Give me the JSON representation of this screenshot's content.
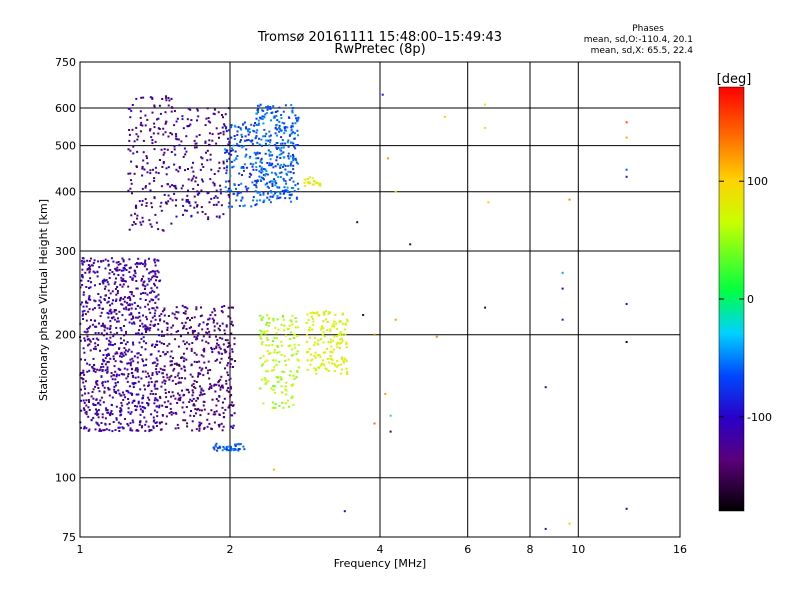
{
  "chart_data": {
    "type": "scatter",
    "title": "Tromsø 20161111 15:48:00–15:49:43",
    "subtitle": "RwPretec (8p)",
    "xlabel": "Frequency [MHz]",
    "ylabel": "Stationary phase Virtual Height [km]",
    "xscale": "log2",
    "yscale": "log",
    "xlim": [
      1,
      16
    ],
    "ylim": [
      75,
      750
    ],
    "xticks": [
      "1",
      "2",
      "4",
      "6",
      "8",
      "10",
      "16"
    ],
    "yticks": [
      "75",
      "100",
      "200",
      "300",
      "400",
      "500",
      "600",
      "750"
    ],
    "grid": true,
    "phase_stats": {
      "title": "Phases",
      "line_o": "mean, sd,O:-110.4, 20.1",
      "line_x": "mean, sd,X:  65.5, 22.4"
    },
    "colorbar": {
      "label": "[deg]",
      "range": [
        -180,
        180
      ],
      "ticks": [
        "100",
        "0",
        "-100"
      ],
      "tick_values": [
        100,
        0,
        -100
      ]
    },
    "clusters": [
      {
        "x": [
          1.0,
          1.45
        ],
        "y": [
          125,
          290
        ],
        "phase": [
          -140,
          -95
        ],
        "n": 900
      },
      {
        "x": [
          1.45,
          2.05
        ],
        "y": [
          125,
          230
        ],
        "phase": [
          -150,
          -110
        ],
        "n": 450
      },
      {
        "x": [
          1.25,
          1.55
        ],
        "y": [
          330,
          640
        ],
        "phase": [
          -150,
          -100
        ],
        "n": 180
      },
      {
        "x": [
          1.55,
          2.0
        ],
        "y": [
          350,
          600
        ],
        "phase": [
          -150,
          -90
        ],
        "n": 190
      },
      {
        "x": [
          1.95,
          2.3
        ],
        "y": [
          370,
          560
        ],
        "phase": [
          -90,
          -40
        ],
        "n": 140
      },
      {
        "x": [
          2.25,
          2.75
        ],
        "y": [
          380,
          610
        ],
        "phase": [
          -80,
          -40
        ],
        "n": 320
      },
      {
        "x": [
          2.3,
          2.75
        ],
        "y": [
          140,
          220
        ],
        "phase": [
          40,
          80
        ],
        "n": 160
      },
      {
        "x": [
          2.85,
          3.45
        ],
        "y": [
          165,
          225
        ],
        "phase": [
          60,
          90
        ],
        "n": 160
      },
      {
        "x": [
          2.8,
          3.05
        ],
        "y": [
          410,
          430
        ],
        "phase": [
          70,
          90
        ],
        "n": 20
      },
      {
        "x": [
          1.85,
          2.15
        ],
        "y": [
          114,
          118
        ],
        "phase": [
          -85,
          -40
        ],
        "n": 45
      }
    ],
    "sparse_points": [
      {
        "x": 4.05,
        "y": 640,
        "phase": -90
      },
      {
        "x": 4.15,
        "y": 470,
        "phase": 120
      },
      {
        "x": 4.3,
        "y": 400,
        "phase": 60
      },
      {
        "x": 5.4,
        "y": 575,
        "phase": 100
      },
      {
        "x": 6.5,
        "y": 610,
        "phase": 80
      },
      {
        "x": 6.5,
        "y": 545,
        "phase": 60
      },
      {
        "x": 6.6,
        "y": 380,
        "phase": 100
      },
      {
        "x": 6.5,
        "y": 228,
        "phase": -150
      },
      {
        "x": 9.6,
        "y": 385,
        "phase": 130
      },
      {
        "x": 9.3,
        "y": 270,
        "phase": -40
      },
      {
        "x": 9.3,
        "y": 250,
        "phase": -100
      },
      {
        "x": 9.3,
        "y": 215,
        "phase": -90
      },
      {
        "x": 8.6,
        "y": 155,
        "phase": -110
      },
      {
        "x": 8.6,
        "y": 78,
        "phase": -90
      },
      {
        "x": 9.6,
        "y": 80,
        "phase": 100
      },
      {
        "x": 12.5,
        "y": 560,
        "phase": 150
      },
      {
        "x": 12.5,
        "y": 520,
        "phase": 120
      },
      {
        "x": 12.5,
        "y": 445,
        "phase": -60
      },
      {
        "x": 12.5,
        "y": 430,
        "phase": -90
      },
      {
        "x": 12.5,
        "y": 232,
        "phase": -90
      },
      {
        "x": 12.5,
        "y": 193,
        "phase": -170
      },
      {
        "x": 12.5,
        "y": 86,
        "phase": -100
      },
      {
        "x": 3.7,
        "y": 220,
        "phase": -150
      },
      {
        "x": 3.9,
        "y": 130,
        "phase": 140
      },
      {
        "x": 4.2,
        "y": 135,
        "phase": -20
      },
      {
        "x": 4.2,
        "y": 125,
        "phase": -150
      },
      {
        "x": 4.1,
        "y": 150,
        "phase": 120
      },
      {
        "x": 3.4,
        "y": 85,
        "phase": -100
      },
      {
        "x": 3.6,
        "y": 345,
        "phase": -150
      },
      {
        "x": 2.45,
        "y": 104,
        "phase": 110
      },
      {
        "x": 5.2,
        "y": 198,
        "phase": 130
      },
      {
        "x": 4.6,
        "y": 310,
        "phase": -150
      },
      {
        "x": 3.9,
        "y": 200,
        "phase": 130
      },
      {
        "x": 4.3,
        "y": 215,
        "phase": 120
      }
    ]
  }
}
